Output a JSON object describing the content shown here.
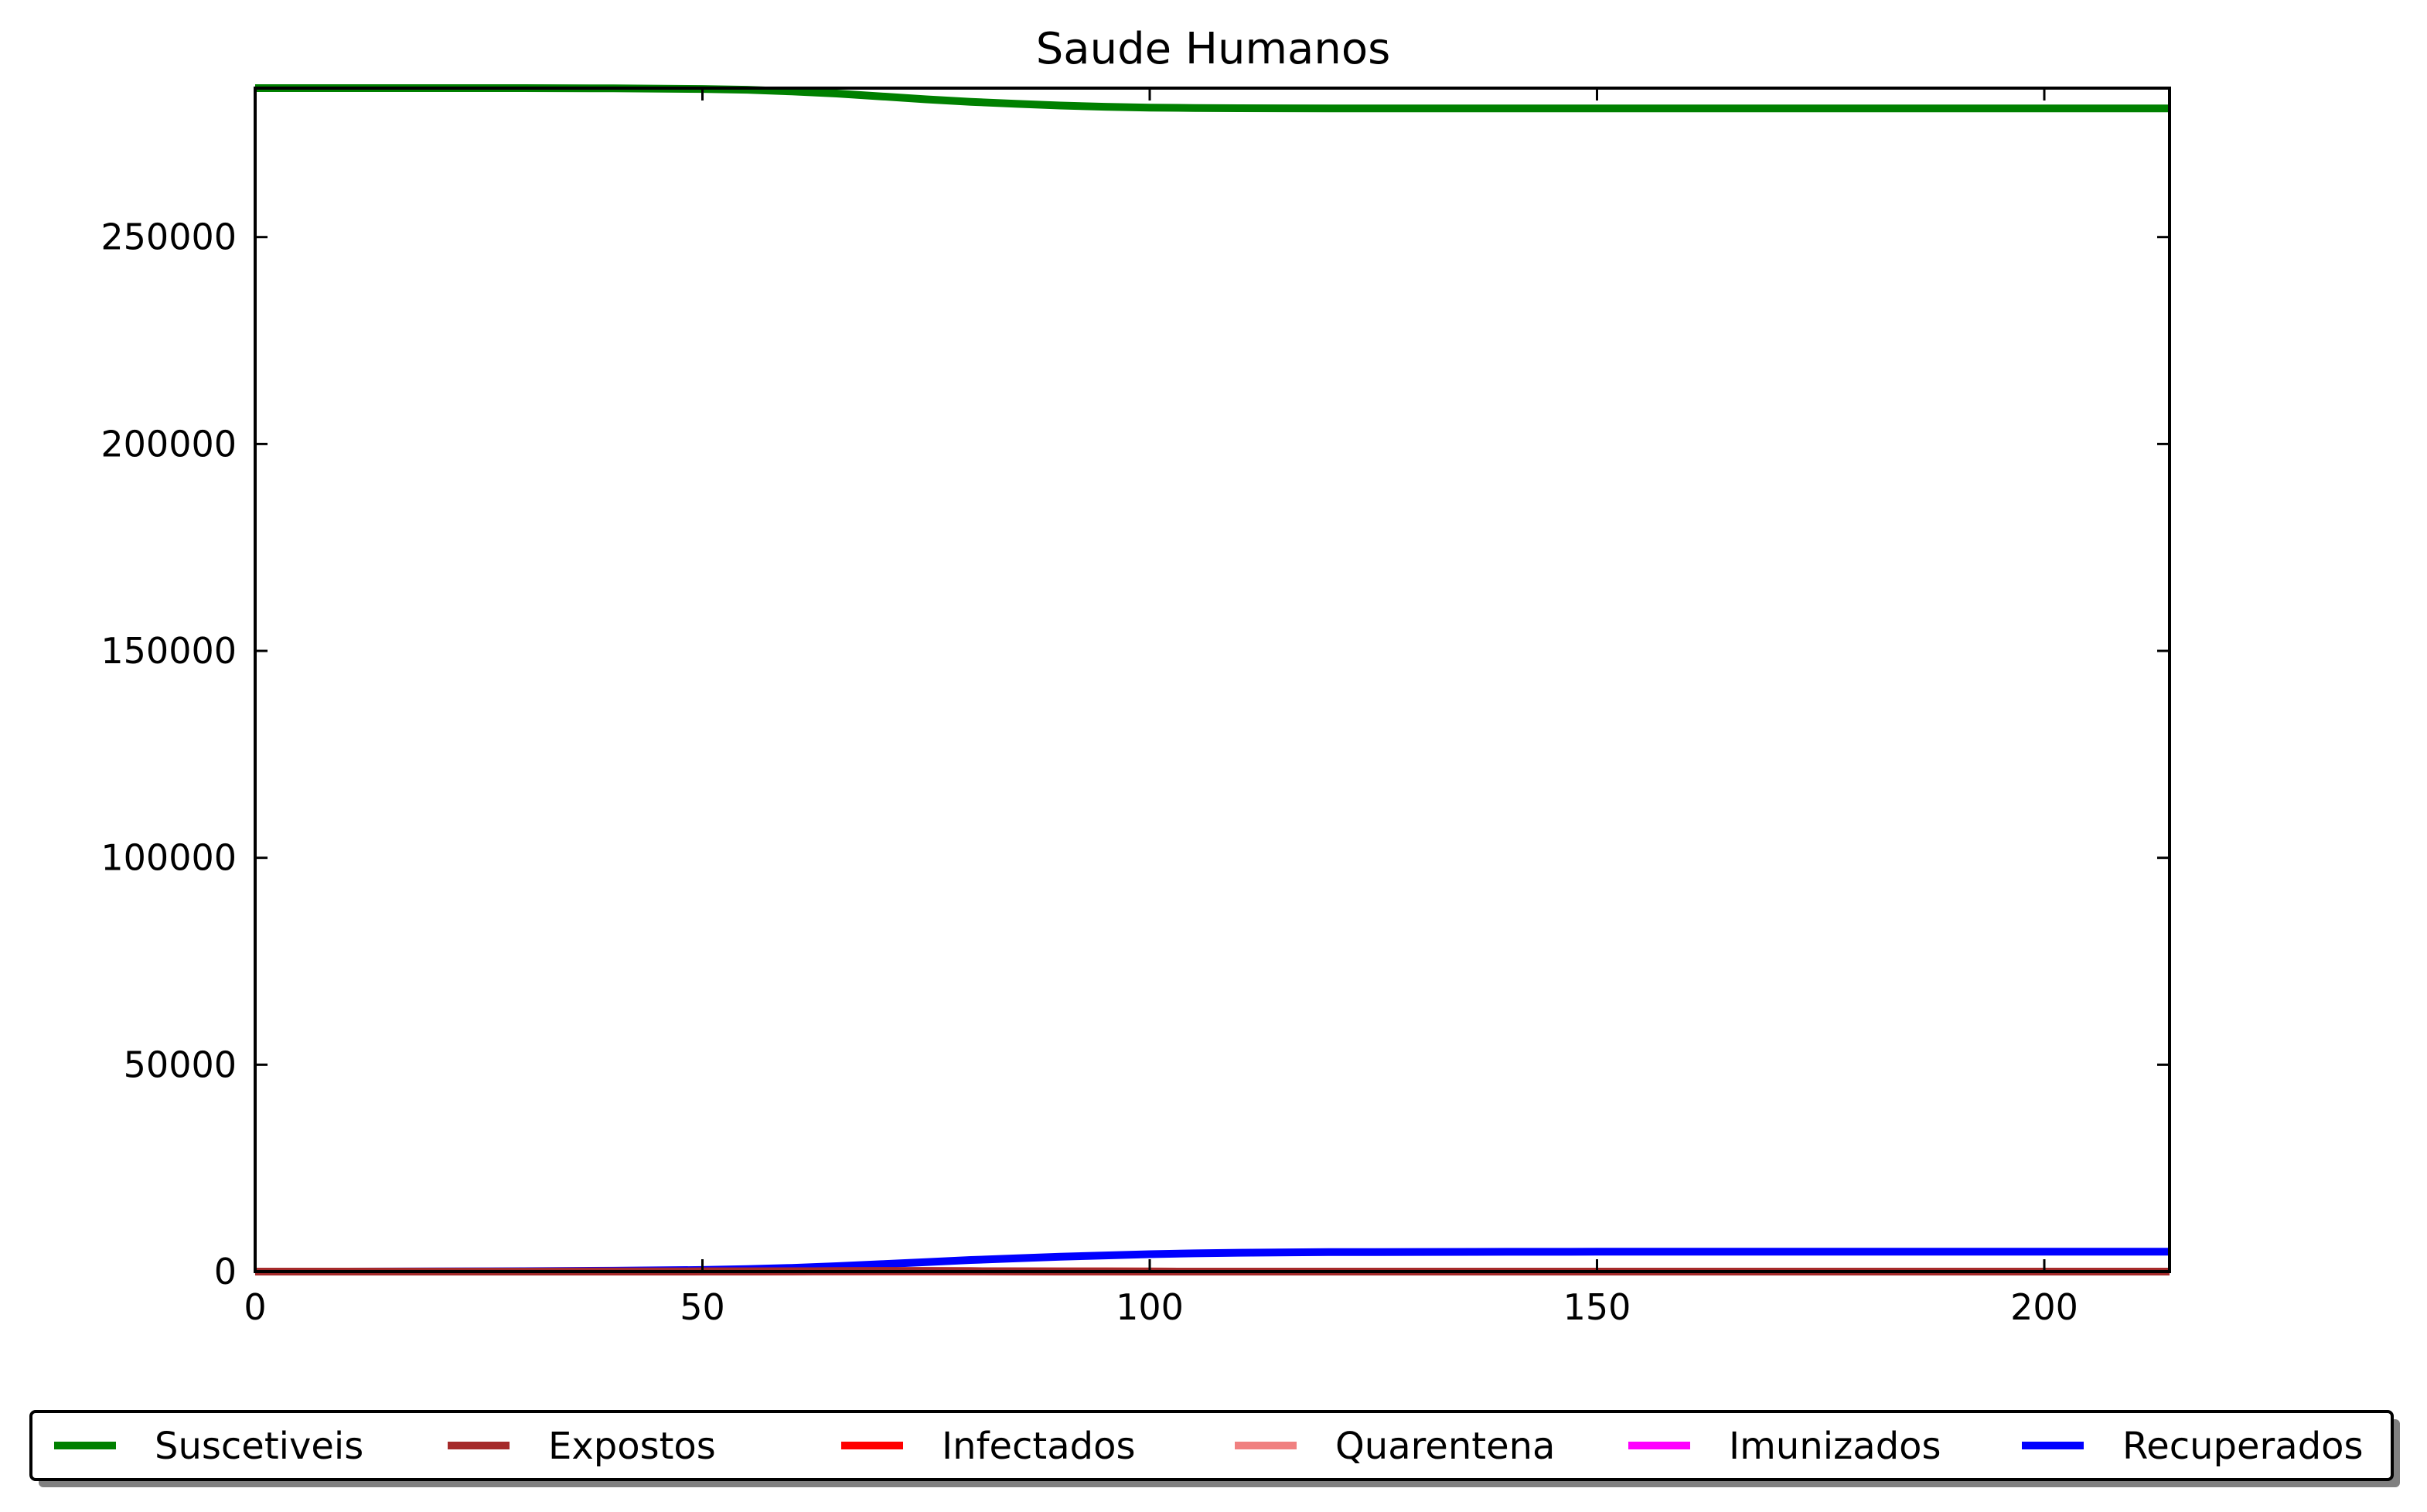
{
  "chart_data": {
    "type": "line",
    "title": "Saude Humanos",
    "xlabel": "",
    "ylabel": "",
    "xlim": [
      0,
      214
    ],
    "ylim": [
      0,
      286000
    ],
    "xticks": [
      0,
      50,
      100,
      150,
      200
    ],
    "yticks": [
      0,
      50000,
      100000,
      150000,
      200000,
      250000
    ],
    "grid": false,
    "legend_placement": "bottom",
    "x": [
      0,
      10,
      20,
      30,
      40,
      50,
      55,
      60,
      65,
      70,
      75,
      80,
      85,
      90,
      95,
      100,
      105,
      110,
      120,
      130,
      140,
      150,
      160,
      170,
      180,
      190,
      200,
      214
    ],
    "series": [
      {
        "name": "Suscetiveis",
        "color": "#008000",
        "values": [
          286000,
          286000,
          286000,
          286000,
          285950,
          285800,
          285600,
          285200,
          284700,
          284000,
          283300,
          282700,
          282200,
          281800,
          281500,
          281300,
          281200,
          281150,
          281100,
          281100,
          281100,
          281100,
          281100,
          281100,
          281100,
          281100,
          281100,
          281100
        ]
      },
      {
        "name": "Expostos",
        "color": "#a52a2a",
        "values": [
          0,
          0,
          0,
          0,
          10,
          30,
          50,
          80,
          110,
          130,
          130,
          110,
          80,
          50,
          30,
          15,
          8,
          4,
          1,
          0,
          0,
          0,
          0,
          0,
          0,
          0,
          0,
          0
        ]
      },
      {
        "name": "Infectados",
        "color": "#ff0000",
        "values": [
          0,
          0,
          0,
          0,
          10,
          30,
          50,
          80,
          110,
          130,
          130,
          110,
          80,
          50,
          30,
          15,
          8,
          4,
          1,
          0,
          0,
          0,
          0,
          0,
          0,
          0,
          0,
          0
        ]
      },
      {
        "name": "Quarentena",
        "color": "#f08080",
        "values": [
          0,
          0,
          0,
          0,
          0,
          0,
          0,
          0,
          0,
          0,
          0,
          0,
          0,
          0,
          0,
          0,
          0,
          0,
          0,
          0,
          0,
          0,
          0,
          0,
          0,
          0,
          0,
          0
        ]
      },
      {
        "name": "Imunizados",
        "color": "#ff00ff",
        "values": [
          0,
          0,
          0,
          0,
          0,
          0,
          0,
          0,
          0,
          0,
          0,
          0,
          0,
          0,
          0,
          0,
          0,
          0,
          0,
          0,
          0,
          0,
          0,
          0,
          0,
          0,
          0,
          0
        ]
      },
      {
        "name": "Recuperados",
        "color": "#0000ff",
        "values": [
          0,
          0,
          50,
          100,
          200,
          400,
          600,
          900,
          1300,
          1800,
          2300,
          2800,
          3200,
          3600,
          3900,
          4200,
          4400,
          4550,
          4700,
          4750,
          4780,
          4800,
          4800,
          4800,
          4800,
          4800,
          4800,
          4800
        ]
      }
    ]
  }
}
